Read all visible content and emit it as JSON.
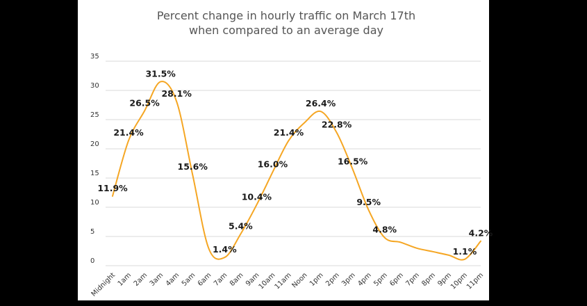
{
  "chart_data": {
    "type": "line",
    "title": [
      "Percent change in hourly traffic on March 17th",
      "when compared to an average day"
    ],
    "xlabel": "",
    "ylabel": "",
    "ylim": [
      0,
      35
    ],
    "yticks": [
      0,
      5,
      10,
      15,
      20,
      25,
      30,
      35
    ],
    "grid": true,
    "legend": "none",
    "line_color": "#F5A623",
    "categories": [
      "Midnight",
      "1am",
      "2am",
      "3am",
      "4am",
      "5am",
      "6am",
      "7am",
      "8am",
      "9am",
      "10am",
      "11am",
      "Noon",
      "1pm",
      "2pm",
      "3pm",
      "4pm",
      "5pm",
      "6pm",
      "7pm",
      "8pm",
      "9pm",
      "10pm",
      "11pm"
    ],
    "values": [
      11.9,
      21.4,
      26.5,
      31.5,
      28.1,
      15.6,
      3.0,
      1.4,
      5.4,
      10.4,
      16.0,
      21.4,
      24.5,
      26.4,
      22.8,
      16.5,
      9.5,
      4.8,
      4.0,
      3.0,
      2.4,
      1.8,
      1.1,
      4.2
    ],
    "data_labels": [
      {
        "index": 0,
        "text": "11.9%"
      },
      {
        "index": 1,
        "text": "21.4%"
      },
      {
        "index": 2,
        "text": "26.5%"
      },
      {
        "index": 3,
        "text": "31.5%"
      },
      {
        "index": 4,
        "text": "28.1%"
      },
      {
        "index": 5,
        "text": "15.6%"
      },
      {
        "index": 7,
        "text": "1.4%"
      },
      {
        "index": 8,
        "text": "5.4%"
      },
      {
        "index": 9,
        "text": "10.4%"
      },
      {
        "index": 10,
        "text": "16.0%"
      },
      {
        "index": 11,
        "text": "21.4%"
      },
      {
        "index": 13,
        "text": "26.4%"
      },
      {
        "index": 14,
        "text": "22.8%"
      },
      {
        "index": 15,
        "text": "16.5%"
      },
      {
        "index": 16,
        "text": "9.5%"
      },
      {
        "index": 17,
        "text": "4.8%"
      },
      {
        "index": 22,
        "text": "1.1%"
      },
      {
        "index": 23,
        "text": "4.2%"
      }
    ]
  }
}
